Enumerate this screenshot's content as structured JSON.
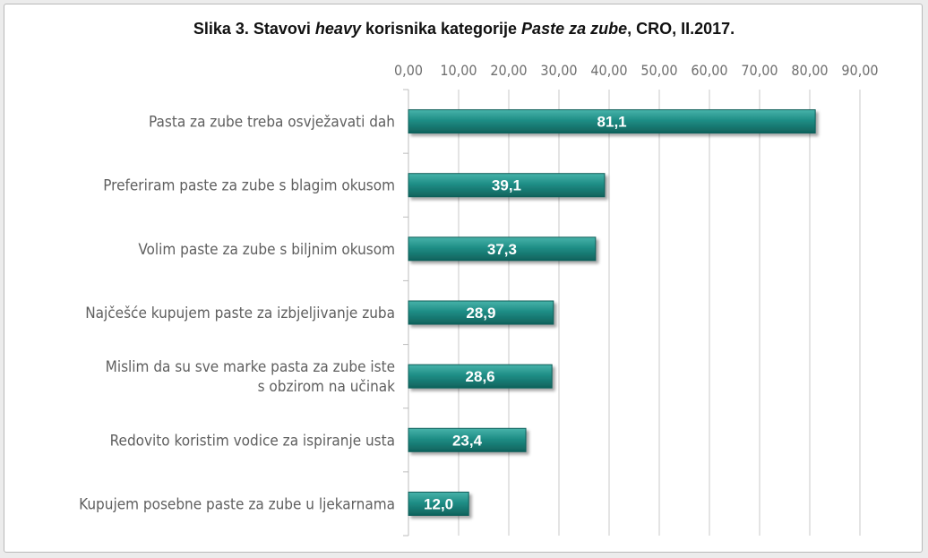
{
  "title": {
    "prefix": "Slika 3. Stavovi ",
    "italic1": "heavy",
    "middle": " korisnika kategorije ",
    "italic2": "Paste za zube",
    "suffix": ", CRO, II.2017."
  },
  "colors": {
    "bar": "#1f8e86",
    "bar_dark": "#0d5d58",
    "grid": "#c8c8c8"
  },
  "chart_data": {
    "type": "bar",
    "orientation": "horizontal",
    "categories": [
      "Pasta za zube treba osvježavati dah",
      "Preferiram paste za zube s blagim okusom",
      "Volim paste za zube s biljnim okusom",
      "Najčešće kupujem paste za izbjeljivanje zuba",
      "Mislim da su sve marke pasta za zube iste\ns obzirom  na učinak",
      "Redovito koristim vodice za ispiranje usta",
      "Kupujem posebne paste za zube u ljekarnama"
    ],
    "values": [
      81.1,
      39.1,
      37.3,
      28.9,
      28.6,
      23.4,
      12.0
    ],
    "value_labels": [
      "81,1",
      "39,1",
      "37,3",
      "28,9",
      "28,6",
      "23,4",
      "12,0"
    ],
    "xlim": [
      0,
      90
    ],
    "xticks": [
      0,
      10,
      20,
      30,
      40,
      50,
      60,
      70,
      80,
      90
    ],
    "xtick_labels": [
      "0,00",
      "10,00",
      "20,00",
      "30,00",
      "40,00",
      "50,00",
      "60,00",
      "70,00",
      "80,00",
      "90,00"
    ],
    "axis_position": "top",
    "grid": true,
    "legend": "none"
  }
}
